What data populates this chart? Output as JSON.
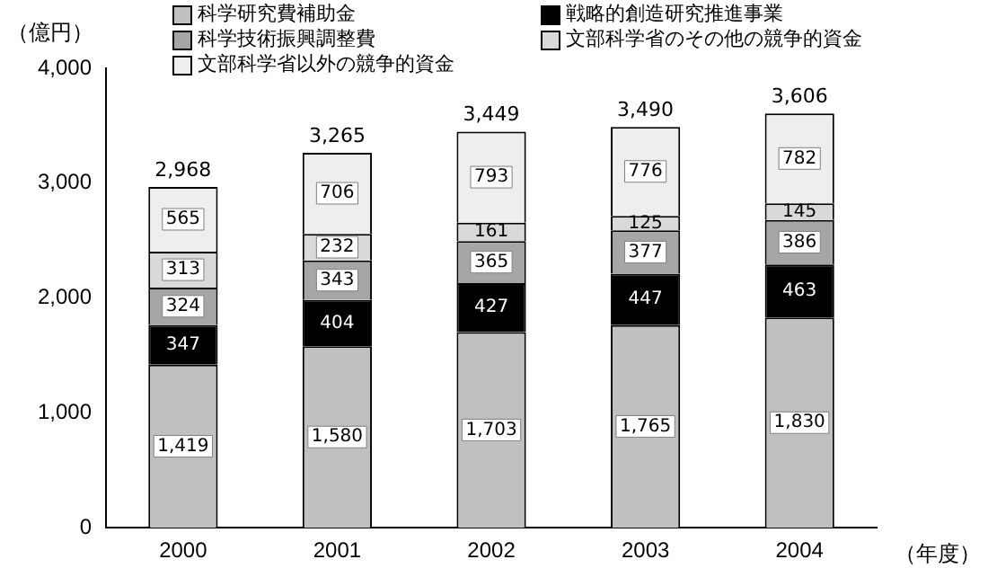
{
  "chart_data": {
    "type": "bar",
    "stacked": true,
    "ylabel": "（億円）",
    "xlabel": "（年度）",
    "categories": [
      "2000",
      "2001",
      "2002",
      "2003",
      "2004"
    ],
    "series": [
      {
        "name": "科学研究費補助金",
        "color": "#c0c0c0",
        "values": [
          1419,
          1580,
          1703,
          1765,
          1830
        ],
        "value_labels": [
          "1,419",
          "1,580",
          "1,703",
          "1,765",
          "1,830"
        ]
      },
      {
        "name": "戦略的創造研究推進事業",
        "color": "#000000",
        "values": [
          347,
          404,
          427,
          447,
          463
        ],
        "value_labels": [
          "347",
          "404",
          "427",
          "447",
          "463"
        ]
      },
      {
        "name": "科学技術振興調整費",
        "color": "#a6a6a6",
        "values": [
          324,
          343,
          365,
          377,
          386
        ],
        "value_labels": [
          "324",
          "343",
          "365",
          "377",
          "386"
        ]
      },
      {
        "name": "文部科学省のその他の競争的資金",
        "color": "#d9d9d9",
        "values": [
          313,
          232,
          161,
          125,
          145
        ],
        "value_labels": [
          "313",
          "232",
          "161",
          "125",
          "145"
        ]
      },
      {
        "name": "文部科学省以外の競争的資金",
        "color": "#eeeeee",
        "values": [
          565,
          706,
          793,
          776,
          782
        ],
        "value_labels": [
          "565",
          "706",
          "793",
          "776",
          "782"
        ]
      }
    ],
    "totals": [
      "2,968",
      "3,265",
      "3,449",
      "3,490",
      "3,606"
    ],
    "ylim": [
      0,
      4000
    ],
    "yticks": [
      {
        "value": 0,
        "label": "0"
      },
      {
        "value": 1000,
        "label": "1,000"
      },
      {
        "value": 2000,
        "label": "2,000"
      },
      {
        "value": 3000,
        "label": "3,000"
      },
      {
        "value": 4000,
        "label": "4,000"
      }
    ],
    "legend": "top left",
    "grid": false
  }
}
